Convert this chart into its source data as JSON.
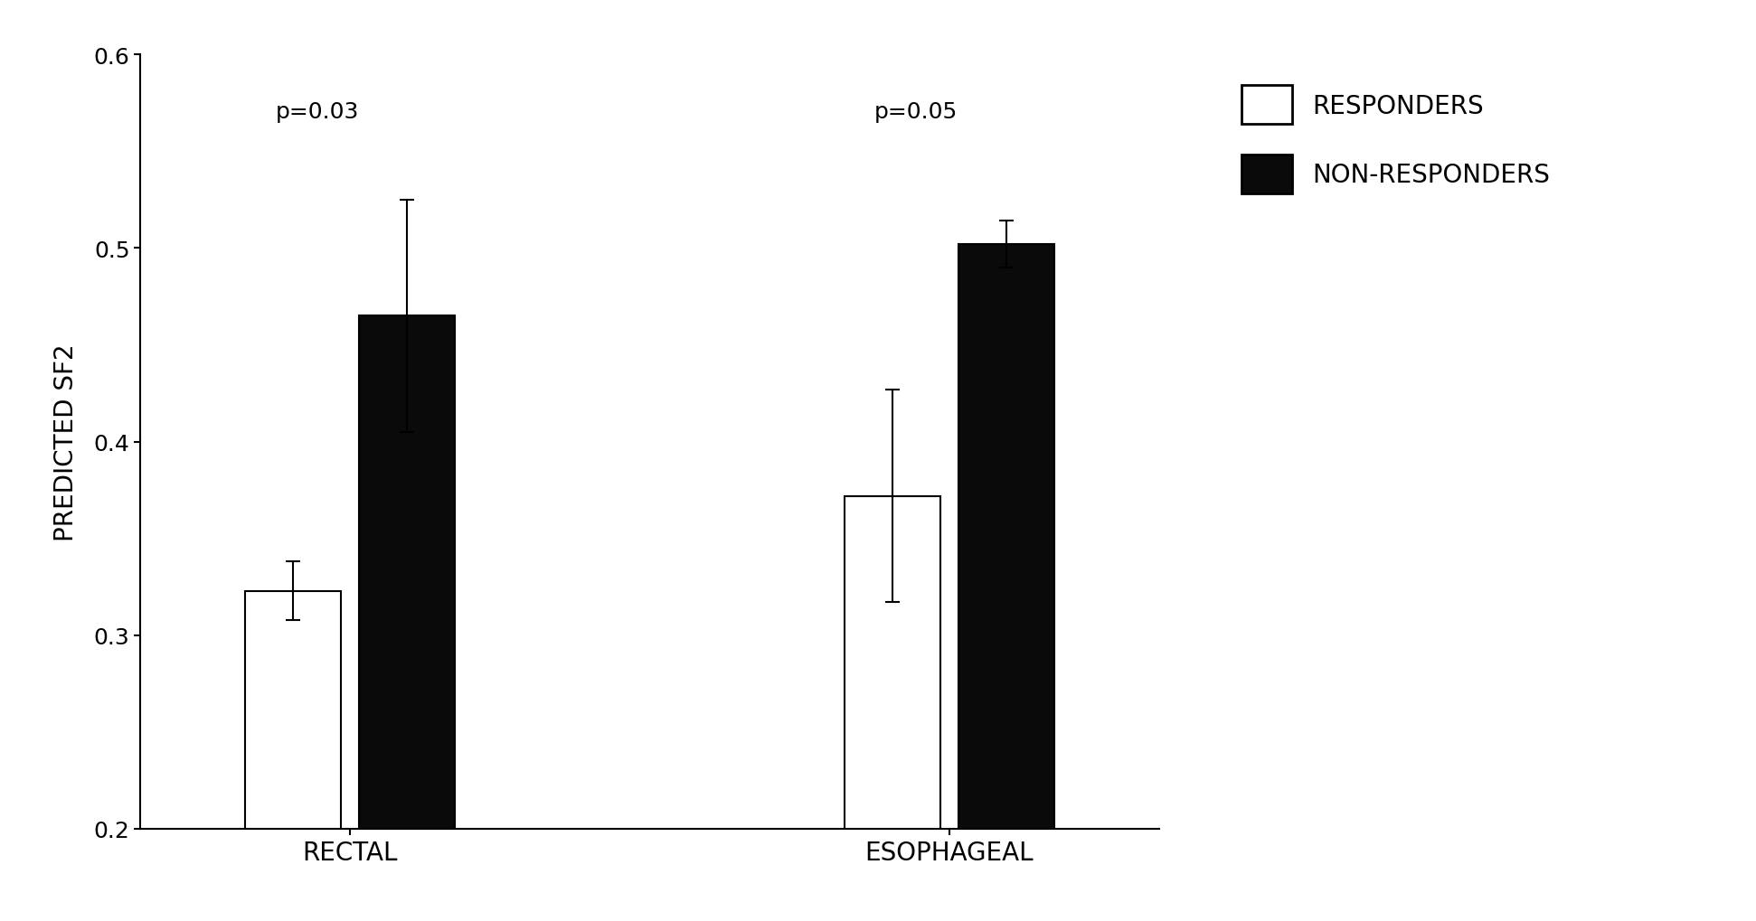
{
  "groups": [
    "RECTAL",
    "ESOPHAGEAL"
  ],
  "responders_values": [
    0.323,
    0.372
  ],
  "nonresponders_values": [
    0.465,
    0.502
  ],
  "responders_errors": [
    0.015,
    0.055
  ],
  "nonresponders_errors": [
    0.06,
    0.012
  ],
  "pvalues": [
    "p=0.03",
    "p=0.05"
  ],
  "ylabel": "PREDICTED SF2",
  "ylim": [
    0.2,
    0.6
  ],
  "yticks": [
    0.2,
    0.3,
    0.4,
    0.5,
    0.6
  ],
  "bar_width": 0.32,
  "responder_color": "#ffffff",
  "nonresponder_color": "#0a0a0a",
  "edge_color": "#000000",
  "legend_labels": [
    "RESPONDERS",
    "NON-RESPONDERS"
  ],
  "label_fontsize": 20,
  "tick_fontsize": 18,
  "legend_fontsize": 20,
  "annot_fontsize": 18,
  "background_color": "#ffffff",
  "figure_width": 19.42,
  "figure_height": 10.2,
  "dpi": 100
}
